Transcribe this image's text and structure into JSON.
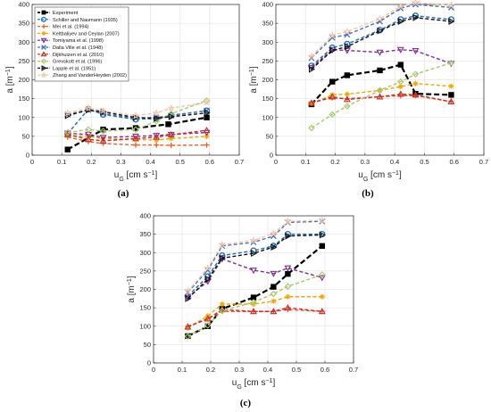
{
  "chart_data": [
    {
      "type": "line",
      "panel_label": "(a)",
      "xlabel": "u_G [cm s^-1]",
      "ylabel": "a [m^-1]",
      "xlim": [
        0,
        0.7
      ],
      "ylim": [
        0,
        400
      ],
      "xticks": [
        "0",
        "0.1",
        "0.2",
        "0.3",
        "0.4",
        "0.5",
        "0.6",
        "0.7"
      ],
      "yticks": [
        "0",
        "50",
        "100",
        "150",
        "200",
        "250",
        "300",
        "350",
        "400"
      ],
      "grid": true,
      "legend": "inside top-left",
      "series": [
        {
          "name": "Experiment",
          "color": "#000000",
          "marker": "square",
          "x": [
            0.12,
            0.24,
            0.35,
            0.46,
            0.59
          ],
          "y": [
            15,
            68,
            72,
            82,
            100
          ]
        },
        {
          "name": "Schiller and Naumann (1935)",
          "color": "#1f6fb4",
          "marker": "circle",
          "x": [
            0.12,
            0.19,
            0.24,
            0.35,
            0.42,
            0.47,
            0.59
          ],
          "y": [
            57,
            122,
            108,
            95,
            97,
            106,
            118
          ]
        },
        {
          "name": "Mei et al. (1994)",
          "color": "#e8622c",
          "marker": "plus",
          "x": [
            0.12,
            0.19,
            0.24,
            0.35,
            0.42,
            0.47,
            0.59
          ],
          "y": [
            48,
            36,
            31,
            27,
            27,
            26,
            27
          ]
        },
        {
          "name": "Keltbaliyev and Ceylan  (2007)",
          "color": "#f0a800",
          "marker": "asterisk",
          "x": [
            0.12,
            0.19,
            0.24,
            0.35,
            0.42,
            0.47,
            0.59
          ],
          "y": [
            52,
            50,
            44,
            42,
            40,
            44,
            50
          ]
        },
        {
          "name": "Tomiyama et al. (1998)",
          "color": "#7e2f8e",
          "marker": "triangle-down",
          "x": [
            0.12,
            0.19,
            0.24,
            0.35,
            0.42,
            0.47,
            0.59
          ],
          "y": [
            58,
            55,
            47,
            50,
            52,
            55,
            60
          ]
        },
        {
          "name": "Dalla Ville et al. (1948)",
          "color": "#4a6eb8",
          "marker": "x",
          "x": [
            0.12,
            0.19,
            0.24,
            0.35,
            0.42,
            0.47,
            0.59
          ],
          "y": [
            108,
            120,
            110,
            98,
            100,
            105,
            118
          ]
        },
        {
          "name": "Dijkhuizen et al. (2010)",
          "color": "#c72a2a",
          "marker": "triangle-up",
          "x": [
            0.12,
            0.19,
            0.24,
            0.35,
            0.42,
            0.47,
            0.59
          ],
          "y": [
            55,
            42,
            38,
            44,
            48,
            54,
            66
          ]
        },
        {
          "name": "Grevskott et al. (1996)",
          "color": "#a6c96a",
          "marker": "diamond",
          "x": [
            0.12,
            0.19,
            0.24,
            0.35,
            0.42,
            0.47,
            0.59
          ],
          "y": [
            60,
            68,
            64,
            68,
            90,
            110,
            145
          ]
        },
        {
          "name": "Lapple et al. (1951)",
          "color": "#111111",
          "marker": "triangle-right",
          "x": [
            0.12,
            0.19,
            0.24,
            0.35,
            0.42,
            0.47,
            0.59
          ],
          "y": [
            105,
            120,
            115,
            100,
            98,
            102,
            112
          ]
        },
        {
          "name": "Zhang and VanderHeyden (2002)",
          "color": "#f2c6a6",
          "marker": "star",
          "x": [
            0.12,
            0.19,
            0.24,
            0.35,
            0.42,
            0.47,
            0.59
          ],
          "y": [
            112,
            125,
            118,
            105,
            112,
            125,
            140
          ]
        }
      ]
    },
    {
      "type": "line",
      "panel_label": "(b)",
      "xlabel": "u_G [cm s^-1]",
      "ylabel": "a [m^-1]",
      "xlim": [
        0,
        0.7
      ],
      "ylim": [
        0,
        400
      ],
      "xticks": [
        "0",
        "0.1",
        "0.2",
        "0.3",
        "0.4",
        "0.5",
        "0.6",
        "0.7"
      ],
      "yticks": [
        "0",
        "50",
        "100",
        "150",
        "200",
        "250",
        "300",
        "350",
        "400"
      ],
      "grid": true,
      "series": [
        {
          "name": "Experiment",
          "color": "#000000",
          "marker": "square",
          "x": [
            0.12,
            0.19,
            0.24,
            0.35,
            0.42,
            0.47,
            0.59
          ],
          "y": [
            135,
            195,
            212,
            225,
            240,
            163,
            160
          ]
        },
        {
          "name": "Schiller and Naumann (1935)",
          "color": "#1f6fb4",
          "marker": "circle",
          "x": [
            0.12,
            0.19,
            0.24,
            0.35,
            0.42,
            0.47,
            0.59
          ],
          "y": [
            237,
            285,
            295,
            332,
            360,
            370,
            360
          ]
        },
        {
          "name": "Mei et al. (1994)",
          "color": "#e8622c",
          "marker": "plus",
          "x": [
            0.12,
            0.19,
            0.24,
            0.35,
            0.42,
            0.47,
            0.59
          ],
          "y": [
            140,
            152,
            150,
            155,
            158,
            158,
            142
          ]
        },
        {
          "name": "Keltbaliyev and Ceylan  (2007)",
          "color": "#f0a800",
          "marker": "asterisk",
          "x": [
            0.12,
            0.19,
            0.24,
            0.35,
            0.42,
            0.47,
            0.59
          ],
          "y": [
            137,
            160,
            162,
            172,
            182,
            190,
            183
          ]
        },
        {
          "name": "Tomiyama et al. (1998)",
          "color": "#7e2f8e",
          "marker": "triangle-down",
          "x": [
            0.12,
            0.19,
            0.24,
            0.35,
            0.42,
            0.47,
            0.59
          ],
          "y": [
            232,
            280,
            278,
            273,
            280,
            277,
            243
          ]
        },
        {
          "name": "Dalla Ville et al. (1948)",
          "color": "#4a6eb8",
          "marker": "x",
          "x": [
            0.12,
            0.19,
            0.24,
            0.35,
            0.42,
            0.47,
            0.59
          ],
          "y": [
            258,
            312,
            320,
            355,
            390,
            400,
            392
          ]
        },
        {
          "name": "Dijkhuizen et al. (2010)",
          "color": "#c72a2a",
          "marker": "triangle-up",
          "x": [
            0.12,
            0.19,
            0.24,
            0.35,
            0.42,
            0.47,
            0.59
          ],
          "y": [
            138,
            155,
            148,
            155,
            162,
            160,
            142
          ]
        },
        {
          "name": "Grevskott et al. (1996)",
          "color": "#a6c96a",
          "marker": "diamond",
          "x": [
            0.12,
            0.19,
            0.24,
            0.35,
            0.42,
            0.47,
            0.59
          ],
          "y": [
            72,
            108,
            130,
            172,
            195,
            215,
            245
          ]
        },
        {
          "name": "Lapple et al. (1951)",
          "color": "#111111",
          "marker": "triangle-right",
          "x": [
            0.12,
            0.19,
            0.24,
            0.35,
            0.42,
            0.47,
            0.59
          ],
          "y": [
            228,
            278,
            288,
            330,
            355,
            365,
            355
          ]
        },
        {
          "name": "Zhang and VanderHeyden (2002)",
          "color": "#f2c6a6",
          "marker": "star",
          "x": [
            0.12,
            0.19,
            0.24,
            0.35,
            0.42,
            0.47,
            0.59
          ],
          "y": [
            262,
            318,
            328,
            362,
            395,
            405,
            398
          ]
        }
      ]
    },
    {
      "type": "line",
      "panel_label": "(c)",
      "xlabel": "u_G [cm s^-1]",
      "ylabel": "a [m^-1]",
      "xlim": [
        0,
        0.7
      ],
      "ylim": [
        0,
        400
      ],
      "xticks": [
        "0",
        "0.1",
        "0.2",
        "0.3",
        "0.4",
        "0.5",
        "0.6",
        "0.7"
      ],
      "yticks": [
        "0",
        "50",
        "100",
        "150",
        "200",
        "250",
        "300",
        "350",
        "400"
      ],
      "grid": true,
      "series": [
        {
          "name": "Experiment",
          "color": "#000000",
          "marker": "square",
          "x": [
            0.12,
            0.19,
            0.24,
            0.35,
            0.42,
            0.47,
            0.59
          ],
          "y": [
            73,
            100,
            147,
            178,
            207,
            242,
            318
          ]
        },
        {
          "name": "Schiller and Naumann (1935)",
          "color": "#1f6fb4",
          "marker": "circle",
          "x": [
            0.12,
            0.19,
            0.24,
            0.35,
            0.42,
            0.47,
            0.59
          ],
          "y": [
            182,
            235,
            292,
            305,
            318,
            350,
            350
          ]
        },
        {
          "name": "Mei et al. (1994)",
          "color": "#e8622c",
          "marker": "plus",
          "x": [
            0.12,
            0.19,
            0.24,
            0.35,
            0.42,
            0.47,
            0.59
          ],
          "y": [
            100,
            120,
            140,
            140,
            140,
            145,
            140
          ]
        },
        {
          "name": "Keltbaliyev and Ceylan  (2007)",
          "color": "#f0a800",
          "marker": "asterisk",
          "x": [
            0.12,
            0.19,
            0.24,
            0.35,
            0.42,
            0.47,
            0.59
          ],
          "y": [
            95,
            128,
            160,
            160,
            168,
            180,
            180
          ]
        },
        {
          "name": "Tomiyama et al. (1998)",
          "color": "#7e2f8e",
          "marker": "triangle-down",
          "x": [
            0.12,
            0.19,
            0.24,
            0.35,
            0.42,
            0.47,
            0.59
          ],
          "y": [
            178,
            222,
            283,
            252,
            243,
            258,
            232
          ]
        },
        {
          "name": "Dalla Ville et al. (1948)",
          "color": "#4a6eb8",
          "marker": "x",
          "x": [
            0.12,
            0.19,
            0.24,
            0.35,
            0.42,
            0.47,
            0.59
          ],
          "y": [
            192,
            252,
            318,
            328,
            345,
            382,
            385
          ]
        },
        {
          "name": "Dijkhuizen et al. (2010)",
          "color": "#c72a2a",
          "marker": "triangle-up",
          "x": [
            0.12,
            0.19,
            0.24,
            0.35,
            0.42,
            0.47,
            0.59
          ],
          "y": [
            98,
            120,
            145,
            140,
            140,
            150,
            140
          ]
        },
        {
          "name": "Grevskott et al. (1996)",
          "color": "#a6c96a",
          "marker": "diamond",
          "x": [
            0.12,
            0.19,
            0.24,
            0.35,
            0.42,
            0.47,
            0.59
          ],
          "y": [
            72,
            102,
            142,
            165,
            188,
            208,
            240
          ]
        },
        {
          "name": "Lapple et al. (1951)",
          "color": "#111111",
          "marker": "triangle-right",
          "x": [
            0.12,
            0.19,
            0.24,
            0.35,
            0.42,
            0.47,
            0.59
          ],
          "y": [
            175,
            228,
            285,
            298,
            315,
            345,
            348
          ]
        },
        {
          "name": "Zhang and VanderHeyden (2002)",
          "color": "#f2c6a6",
          "marker": "star",
          "x": [
            0.12,
            0.19,
            0.24,
            0.35,
            0.42,
            0.47,
            0.59
          ],
          "y": [
            195,
            258,
            322,
            333,
            352,
            385,
            388
          ]
        }
      ]
    }
  ]
}
